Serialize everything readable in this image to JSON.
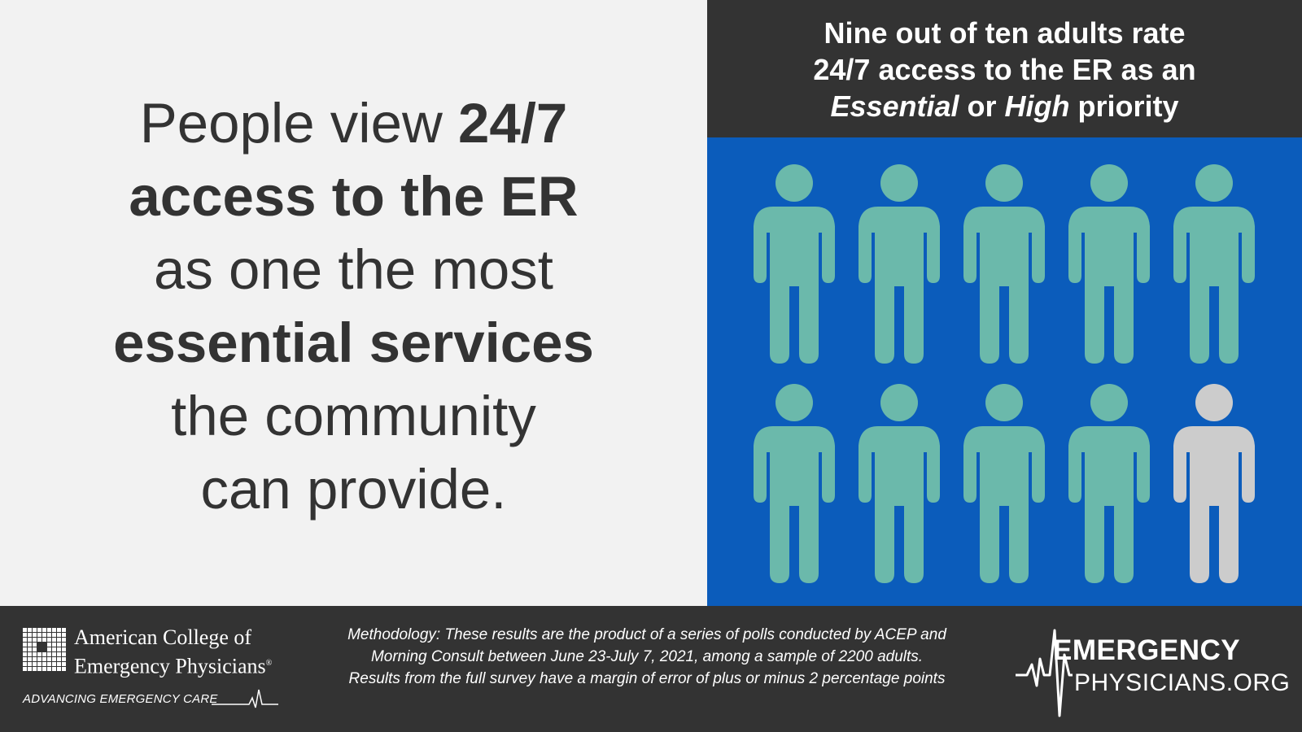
{
  "headline": {
    "line1_regular": "People view ",
    "line1_bold": "24/7",
    "line2_bold": "access to the ER",
    "line3_regular": "as one the most",
    "line4_bold": "essential services",
    "line5_regular": "the community",
    "line6_regular": "can provide."
  },
  "stat_header": {
    "line1": "Nine out of ten adults rate",
    "line2": "24/7 access to the ER as an",
    "line3_italic_a": "Essential",
    "line3_mid": " or ",
    "line3_italic_b": "High",
    "line3_end": " priority"
  },
  "pictogram": {
    "highlighted_count": 9,
    "total": 10,
    "highlight_color": "#6bb9ab",
    "other_color": "#cccccc",
    "icon": "person-icon"
  },
  "footer": {
    "acep_name_line1": "American College of",
    "acep_name_line2": "Emergency Physicians",
    "acep_registered": "®",
    "acep_tagline": "ADVANCING EMERGENCY CARE",
    "methodology_line1": "Methodology: These results are the product of a series of polls conducted by ACEP and",
    "methodology_line2": "Morning Consult between June 23-July 7, 2021, among a sample of 2200 adults.",
    "methodology_line3": "Results from the full survey have a margin of error of plus or minus 2 percentage points",
    "ep_logo_line1": "EMERGENCY",
    "ep_logo_line2": "PHYSICIANS.ORG"
  },
  "colors": {
    "dark_gray": "#333333",
    "light_bg": "#f2f2f2",
    "blue_panel": "#0b5cbb",
    "teal_person": "#6bb9ab",
    "gray_person": "#cccccc"
  }
}
